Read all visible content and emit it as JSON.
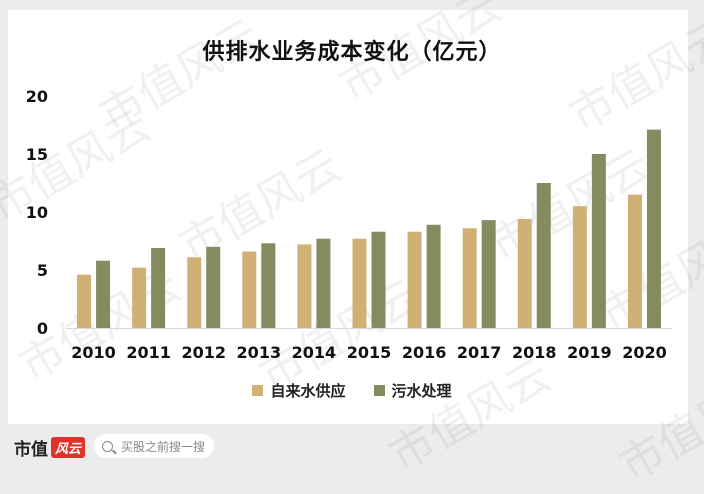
{
  "chart_data": {
    "type": "bar",
    "title": "供排水业务成本变化（亿元）",
    "categories": [
      "2010",
      "2011",
      "2012",
      "2013",
      "2014",
      "2015",
      "2016",
      "2017",
      "2018",
      "2019",
      "2020"
    ],
    "series": [
      {
        "name": "自来水供应",
        "color": "#d1b075",
        "values": [
          4.6,
          5.2,
          6.1,
          6.6,
          7.2,
          7.7,
          8.3,
          8.6,
          9.4,
          10.5,
          11.5
        ]
      },
      {
        "name": "污水处理",
        "color": "#838b5f",
        "values": [
          5.8,
          6.9,
          7.0,
          7.3,
          7.7,
          8.3,
          8.9,
          9.3,
          12.5,
          15.0,
          17.1
        ]
      }
    ],
    "ylim": [
      0,
      20
    ],
    "yticks": [
      0,
      5,
      10,
      15,
      20
    ],
    "grid": false,
    "legend_position": "bottom"
  },
  "watermark": "市值风云",
  "brand": {
    "name": "市值",
    "badge": "风云"
  },
  "search": {
    "placeholder": "买股之前搜一搜",
    "icon": "search-icon"
  }
}
